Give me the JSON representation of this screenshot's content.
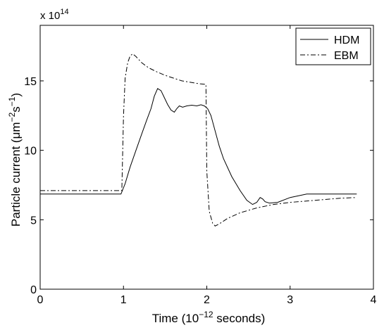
{
  "chart_data": {
    "type": "line",
    "title": "",
    "xlabel": "Time (10",
    "xlabel_exponent": "−12",
    "xlabel_suffix": " seconds)",
    "ylabel": "Particle current (μm",
    "ylabel_exp1": "−2",
    "ylabel_mid": "s",
    "ylabel_exp2": "−1",
    "ylabel_suffix": ")",
    "scale_prefix": "x 10",
    "scale_exponent": "14",
    "xlim": [
      0,
      4
    ],
    "ylim": [
      0,
      19
    ],
    "x_ticks": [
      0,
      1,
      2,
      3,
      4
    ],
    "x_tick_labels": [
      "0",
      "1",
      "2",
      "3",
      "4"
    ],
    "y_ticks": [
      0,
      5,
      10,
      15
    ],
    "y_tick_labels": [
      "0",
      "5",
      "10",
      "15"
    ],
    "grid": false,
    "legend_position": "top-right",
    "series": [
      {
        "name": "HDM",
        "style": "solid",
        "color": "#000000",
        "points": [
          [
            0.0,
            6.85
          ],
          [
            0.5,
            6.85
          ],
          [
            0.97,
            6.85
          ],
          [
            1.02,
            7.6
          ],
          [
            1.08,
            8.8
          ],
          [
            1.15,
            10.0
          ],
          [
            1.22,
            11.2
          ],
          [
            1.28,
            12.2
          ],
          [
            1.33,
            13.0
          ],
          [
            1.37,
            13.9
          ],
          [
            1.41,
            14.45
          ],
          [
            1.45,
            14.3
          ],
          [
            1.49,
            13.8
          ],
          [
            1.53,
            13.3
          ],
          [
            1.57,
            12.9
          ],
          [
            1.61,
            12.75
          ],
          [
            1.64,
            13.0
          ],
          [
            1.67,
            13.2
          ],
          [
            1.71,
            13.1
          ],
          [
            1.76,
            13.2
          ],
          [
            1.82,
            13.25
          ],
          [
            1.88,
            13.2
          ],
          [
            1.93,
            13.28
          ],
          [
            1.97,
            13.2
          ],
          [
            2.01,
            13.0
          ],
          [
            2.05,
            12.5
          ],
          [
            2.1,
            11.4
          ],
          [
            2.15,
            10.3
          ],
          [
            2.2,
            9.4
          ],
          [
            2.3,
            8.1
          ],
          [
            2.4,
            7.1
          ],
          [
            2.48,
            6.4
          ],
          [
            2.55,
            6.1
          ],
          [
            2.6,
            6.25
          ],
          [
            2.64,
            6.6
          ],
          [
            2.67,
            6.5
          ],
          [
            2.7,
            6.3
          ],
          [
            2.75,
            6.2
          ],
          [
            2.85,
            6.25
          ],
          [
            3.0,
            6.6
          ],
          [
            3.2,
            6.85
          ],
          [
            3.5,
            6.85
          ],
          [
            3.8,
            6.85
          ]
        ]
      },
      {
        "name": "EBM",
        "style": "dashdot",
        "color": "#000000",
        "points": [
          [
            0.0,
            7.1
          ],
          [
            0.5,
            7.1
          ],
          [
            0.98,
            7.1
          ],
          [
            1.0,
            12.5
          ],
          [
            1.02,
            15.2
          ],
          [
            1.05,
            16.3
          ],
          [
            1.08,
            16.8
          ],
          [
            1.11,
            16.95
          ],
          [
            1.15,
            16.75
          ],
          [
            1.22,
            16.3
          ],
          [
            1.3,
            15.95
          ],
          [
            1.4,
            15.65
          ],
          [
            1.5,
            15.4
          ],
          [
            1.6,
            15.2
          ],
          [
            1.7,
            15.0
          ],
          [
            1.8,
            14.9
          ],
          [
            1.9,
            14.8
          ],
          [
            1.99,
            14.75
          ],
          [
            2.0,
            8.5
          ],
          [
            2.03,
            5.6
          ],
          [
            2.07,
            4.75
          ],
          [
            2.1,
            4.55
          ],
          [
            2.15,
            4.7
          ],
          [
            2.25,
            5.1
          ],
          [
            2.4,
            5.5
          ],
          [
            2.6,
            5.85
          ],
          [
            2.8,
            6.1
          ],
          [
            3.0,
            6.25
          ],
          [
            3.3,
            6.4
          ],
          [
            3.6,
            6.55
          ],
          [
            3.8,
            6.6
          ]
        ]
      }
    ]
  }
}
